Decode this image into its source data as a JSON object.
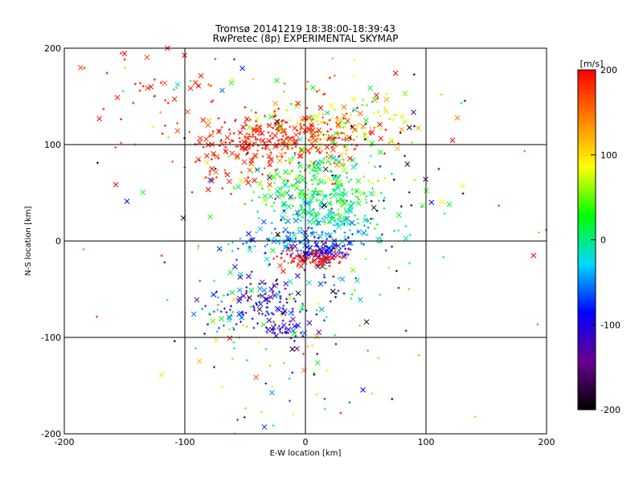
{
  "chart_data": {
    "type": "scatter",
    "title": "Tromsø 20141219 18:38:00-18:39:43",
    "subtitle": "RwPretec (8p) EXPERIMENTAL SKYMAP",
    "xlabel": "E-W location [km]",
    "ylabel": "N-S location [km]",
    "xlim": [
      -200,
      200
    ],
    "ylim": [
      -200,
      200
    ],
    "xticks": [
      "-200",
      "-100",
      "0",
      "100",
      "200"
    ],
    "yticks": [
      "-200",
      "-100",
      "0",
      "100",
      "200"
    ],
    "grid": true,
    "colorbar": {
      "label": "[m/s]",
      "range": [
        -200,
        200
      ],
      "ticks": [
        "-200",
        "-100",
        "0",
        "100",
        "200"
      ],
      "colors": [
        "#000000",
        "#6a0090",
        "#0000ff",
        "#00d8ff",
        "#00ff00",
        "#ffff00",
        "#ff8000",
        "#ff0000"
      ]
    },
    "markers": [
      "cross",
      "plus"
    ],
    "clusters": [
      {
        "x": -20,
        "y": 110,
        "sx": 35,
        "sy": 12,
        "v": 190,
        "n": 220,
        "color_spread": 15
      },
      {
        "x": -120,
        "y": 160,
        "sx": 40,
        "sy": 25,
        "v": 190,
        "n": 45,
        "color_spread": 10
      },
      {
        "x": 20,
        "y": 110,
        "sx": 25,
        "sy": 15,
        "v": 140,
        "n": 90,
        "color_spread": 60
      },
      {
        "x": 35,
        "y": 120,
        "sx": 25,
        "sy": 20,
        "v": 60,
        "n": 60,
        "color_spread": 40
      },
      {
        "x": -55,
        "y": 80,
        "sx": 25,
        "sy": 20,
        "v": 185,
        "n": 80,
        "color_spread": 20
      },
      {
        "x": 10,
        "y": 60,
        "sx": 25,
        "sy": 18,
        "v": 30,
        "n": 220,
        "color_spread": 30
      },
      {
        "x": 20,
        "y": 30,
        "sx": 25,
        "sy": 15,
        "v": -10,
        "n": 180,
        "color_spread": 25
      },
      {
        "x": 0,
        "y": -5,
        "sx": 30,
        "sy": 10,
        "v": -50,
        "n": 140,
        "color_spread": 30
      },
      {
        "x": 5,
        "y": -18,
        "sx": 14,
        "sy": 4,
        "v": 195,
        "n": 90,
        "color_spread": 8
      },
      {
        "x": 12,
        "y": -10,
        "sx": 12,
        "sy": 6,
        "v": -100,
        "n": 60,
        "color_spread": 20
      },
      {
        "x": -30,
        "y": -65,
        "sx": 20,
        "sy": 18,
        "v": -110,
        "n": 110,
        "color_spread": 30
      },
      {
        "x": -20,
        "y": -90,
        "sx": 8,
        "sy": 4,
        "v": -115,
        "n": 25,
        "color_spread": 8
      },
      {
        "x": -60,
        "y": -80,
        "sx": 25,
        "sy": 20,
        "v": -20,
        "n": 70,
        "color_spread": 60
      },
      {
        "x": 20,
        "y": -60,
        "sx": 25,
        "sy": 25,
        "v": -40,
        "n": 50,
        "color_spread": 70
      },
      {
        "x": 0,
        "y": 140,
        "sx": 60,
        "sy": 30,
        "v": 120,
        "n": 70,
        "color_spread": 80
      },
      {
        "x": 60,
        "y": 50,
        "sx": 40,
        "sy": 60,
        "v": -180,
        "n": 25,
        "color_spread": 20
      },
      {
        "x": -10,
        "y": -140,
        "sx": 50,
        "sy": 40,
        "v": 50,
        "n": 40,
        "color_spread": 120
      },
      {
        "x": 0,
        "y": 40,
        "sx": 100,
        "sy": 110,
        "v": 0,
        "n": 120,
        "color_spread": 190
      }
    ]
  }
}
